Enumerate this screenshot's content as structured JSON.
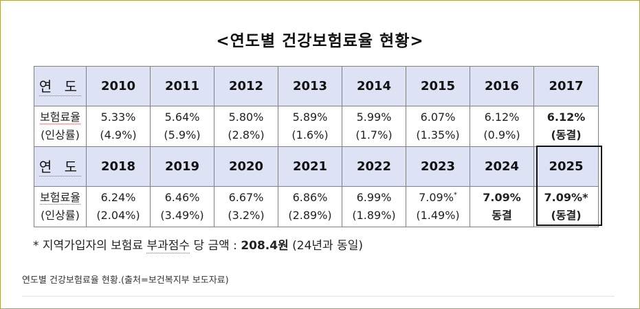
{
  "title": "<연도별 건강보험료율 현황>",
  "table": {
    "year_label": "연 도",
    "rate_label_line1": "보험료율",
    "rate_label_line2": "(인상률)",
    "blocks": [
      {
        "years": [
          "2010",
          "2011",
          "2012",
          "2013",
          "2014",
          "2015",
          "2016",
          "2017"
        ],
        "rates": [
          "5.33%",
          "5.64%",
          "5.80%",
          "5.89%",
          "5.99%",
          "6.07%",
          "6.12%",
          "6.12%"
        ],
        "changes": [
          "(4.9%)",
          "(5.9%)",
          "(2.8%)",
          "(1.6%)",
          "(1.7%)",
          "(1.35%)",
          "(0.9%)",
          "(동결)"
        ]
      },
      {
        "years": [
          "2018",
          "2019",
          "2020",
          "2021",
          "2022",
          "2023",
          "2024",
          "2025"
        ],
        "rates": [
          "6.24%",
          "6.46%",
          "6.67%",
          "6.86%",
          "6.99%",
          "7.09%",
          "7.09%",
          "7.09%"
        ],
        "changes": [
          "(2.04%)",
          "(3.49%)",
          "(3.2%)",
          "(2.89%)",
          "(1.89%)",
          "(1.49%)",
          "동결",
          "(동결)"
        ],
        "rate_marks": [
          "",
          "",
          "",
          "",
          "",
          "*",
          "",
          "*"
        ]
      }
    ]
  },
  "footnote": {
    "prefix": "* 지역가입자의 보험료 ",
    "underlined": "부과점수",
    "middle": " 당 금액 : ",
    "amount": "208.4원",
    "suffix": " (24년과 동일)"
  },
  "caption": "연도별 건강보험료율 현황.(출처=보건복지부 보도자료)",
  "colors": {
    "header_bg": "#dde3f4",
    "highlight_text": "#2a2ab0",
    "frame_border": "#a9a64a"
  }
}
